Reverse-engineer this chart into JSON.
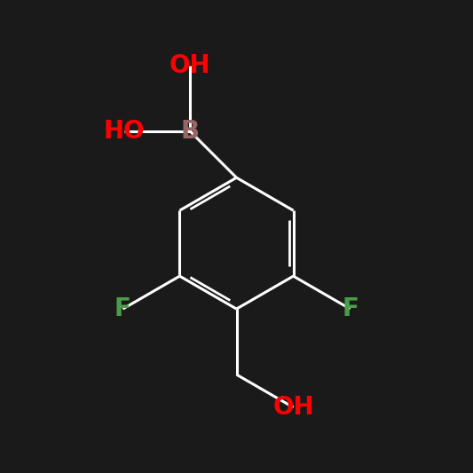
{
  "background_color": "#1a1a1a",
  "bond_color": "#ffffff",
  "bond_width": 2.2,
  "figsize": [
    5.33,
    5.33
  ],
  "dpi": 100,
  "labels": {
    "OH_top": {
      "text": "OH",
      "color": "#ff0000",
      "fontsize": 20,
      "bold": true
    },
    "HO_left": {
      "text": "HO",
      "color": "#ff0000",
      "fontsize": 20,
      "bold": true
    },
    "B": {
      "text": "B",
      "color": "#996666",
      "fontsize": 20,
      "bold": true
    },
    "F_right": {
      "text": "F",
      "color": "#4a9e4a",
      "fontsize": 20,
      "bold": true
    },
    "F_left": {
      "text": "F",
      "color": "#4a9e4a",
      "fontsize": 20,
      "bold": true
    },
    "OH_bottom": {
      "text": "OH",
      "color": "#ff0000",
      "fontsize": 20,
      "bold": true
    }
  }
}
